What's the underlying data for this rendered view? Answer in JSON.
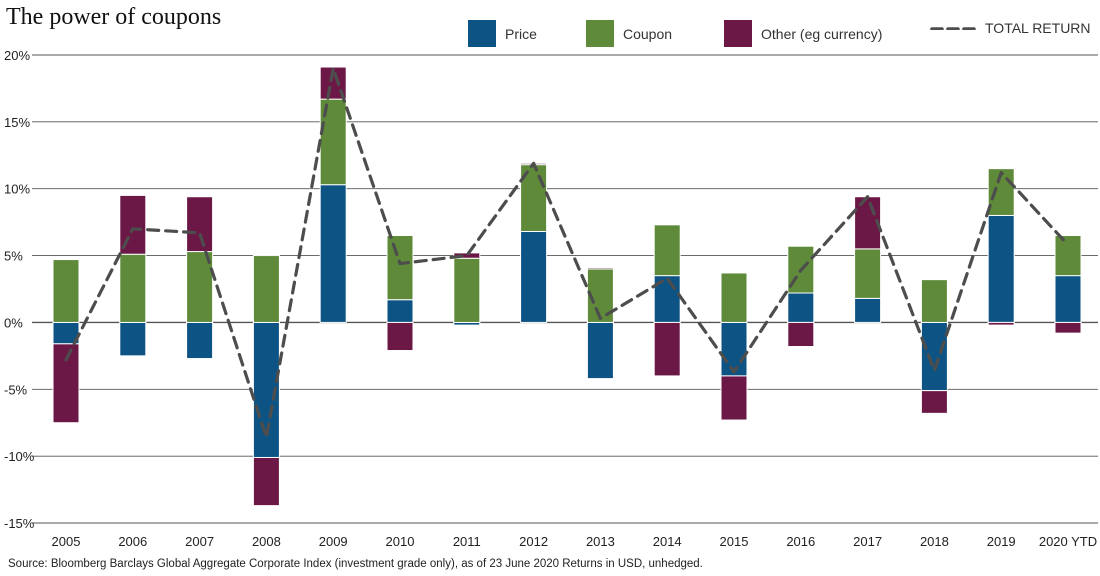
{
  "title": "The power of coupons",
  "source": "Source: Bloomberg Barclays Global Aggregate Corporate Index (investment grade only), as of 23 June 2020 Returns in USD, unhedged.",
  "legend": {
    "price": "Price",
    "coupon": "Coupon",
    "other": "Other (eg currency)",
    "total": "TOTAL RETURN"
  },
  "colors": {
    "price": "#0d5383",
    "coupon": "#5e8a3a",
    "other": "#6b1847",
    "total": "#4d4d4d",
    "grid": "#555555"
  },
  "chart_data": {
    "type": "bar",
    "stacked": true,
    "categories": [
      "2005",
      "2006",
      "2007",
      "2008",
      "2009",
      "2010",
      "2011",
      "2012",
      "2013",
      "2014",
      "2015",
      "2016",
      "2017",
      "2018",
      "2019",
      "2020 YTD"
    ],
    "series": [
      {
        "name": "Price",
        "values": [
          -1.6,
          -2.5,
          -2.7,
          -10.1,
          10.3,
          1.7,
          -0.2,
          6.8,
          -4.2,
          3.5,
          -4.0,
          2.2,
          1.8,
          -5.1,
          8.0,
          3.5
        ]
      },
      {
        "name": "Coupon",
        "values": [
          4.7,
          5.1,
          5.3,
          5.0,
          6.4,
          4.8,
          4.8,
          5.0,
          4.0,
          3.8,
          3.7,
          3.5,
          3.7,
          3.2,
          3.5,
          3.0
        ]
      },
      {
        "name": "Other (eg currency)",
        "values": [
          -5.9,
          4.4,
          4.1,
          -3.6,
          2.4,
          -2.1,
          0.4,
          0.1,
          0.1,
          -4.0,
          -3.3,
          -1.8,
          3.9,
          -1.7,
          -0.2,
          -0.8
        ]
      },
      {
        "name": "TOTAL RETURN",
        "type": "line",
        "values": [
          -2.8,
          7.0,
          6.7,
          -8.6,
          19.0,
          4.4,
          5.0,
          11.9,
          0.3,
          3.3,
          -3.7,
          3.9,
          9.4,
          -3.6,
          11.2,
          5.8
        ]
      }
    ],
    "yticks": [
      "20%",
      "15%",
      "10%",
      "5%",
      "0%",
      "-5%",
      "-10%",
      "-15%"
    ],
    "ylim": [
      -15,
      20
    ],
    "grid": true,
    "legend_position": "top"
  }
}
